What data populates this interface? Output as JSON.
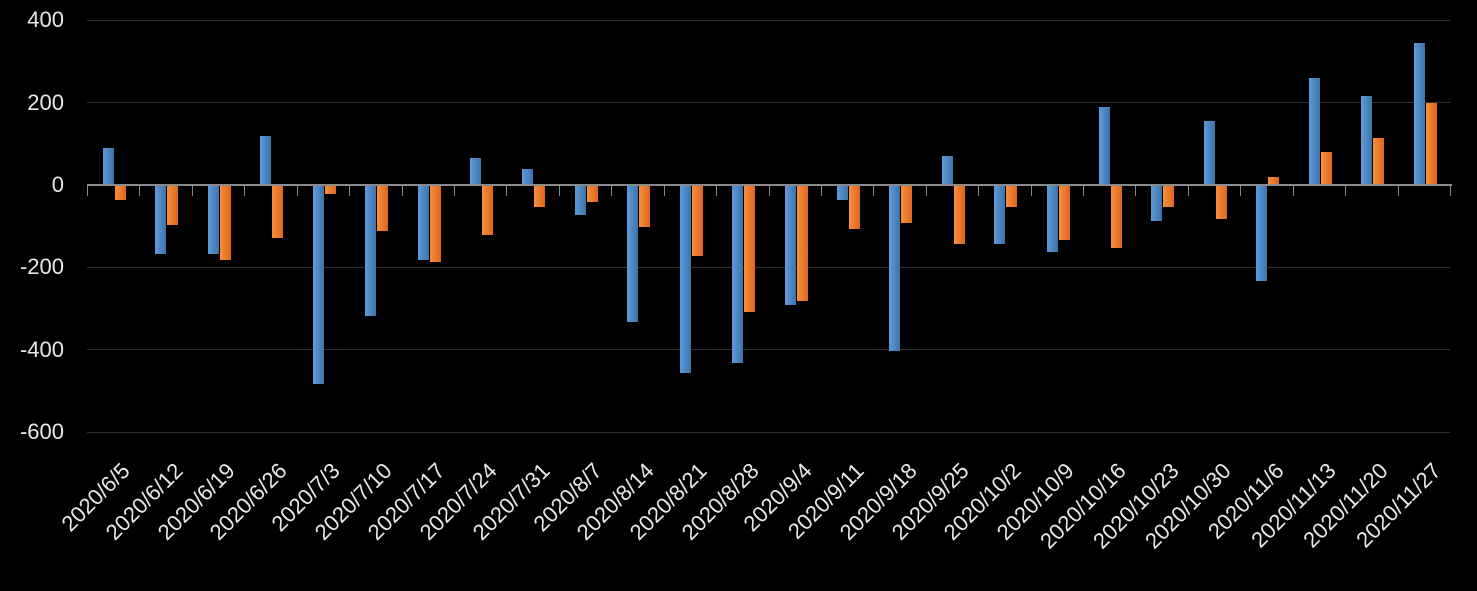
{
  "chart_data": {
    "type": "bar",
    "title": "",
    "xlabel": "",
    "ylabel": "",
    "categories": [
      "2020/6/5",
      "2020/6/12",
      "2020/6/19",
      "2020/6/26",
      "2020/7/3",
      "2020/7/10",
      "2020/7/17",
      "2020/7/24",
      "2020/7/31",
      "2020/8/7",
      "2020/8/14",
      "2020/8/21",
      "2020/8/28",
      "2020/9/4",
      "2020/9/11",
      "2020/9/18",
      "2020/9/25",
      "2020/10/2",
      "2020/10/9",
      "2020/10/16",
      "2020/10/23",
      "2020/10/30",
      "2020/11/6",
      "2020/11/13",
      "2020/11/20",
      "2020/11/27"
    ],
    "series": [
      {
        "name": "series-1-blue",
        "color_light": "#5E9CD9",
        "color_dark": "#3C72AC",
        "values": [
          90,
          -165,
          -165,
          120,
          -480,
          -315,
          -180,
          65,
          40,
          -70,
          -330,
          -455,
          -430,
          -290,
          -35,
          -400,
          70,
          -140,
          -160,
          190,
          -85,
          155,
          -230,
          260,
          215,
          345
        ]
      },
      {
        "name": "series-2-orange",
        "color_light": "#F78F3E",
        "color_dark": "#DE661C",
        "values": [
          -35,
          -95,
          -180,
          -125,
          -20,
          -110,
          -185,
          -120,
          -50,
          -40,
          -100,
          -170,
          -305,
          -280,
          -105,
          -90,
          -140,
          -50,
          -130,
          -150,
          -50,
          -80,
          20,
          80,
          115,
          200
        ]
      }
    ],
    "ylim": [
      -600,
      400
    ],
    "yticks": [
      400,
      200,
      0,
      -200,
      -400,
      -600
    ],
    "grid": true,
    "legend_position": "none",
    "colors": {
      "background": "#000000",
      "gridline": "#2F2F2F",
      "axis": "#8B8B8B",
      "label_text": "#E8E8E8"
    }
  }
}
